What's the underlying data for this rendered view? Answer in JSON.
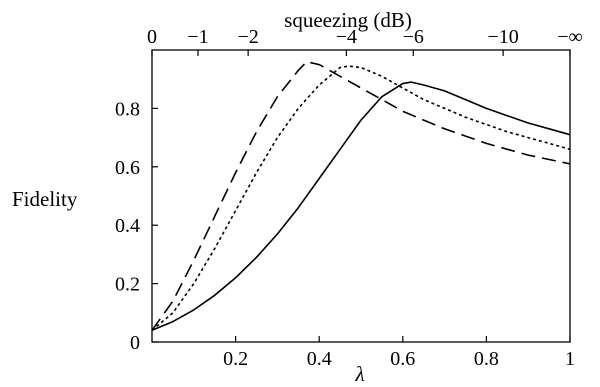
{
  "chart_data": {
    "type": "line",
    "title": "",
    "xlabel": "λ",
    "ylabel": "Fidelity",
    "x2label": "squeezing (dB)",
    "xlim": [
      0,
      1
    ],
    "ylim": [
      0,
      1
    ],
    "grid": false,
    "legend": "none",
    "xticks": [
      {
        "value": 0.2,
        "label": "0.2"
      },
      {
        "value": 0.4,
        "label": "0.4"
      },
      {
        "value": 0.6,
        "label": "0.6"
      },
      {
        "value": 0.8,
        "label": "0.8"
      },
      {
        "value": 1.0,
        "label": "1"
      }
    ],
    "yticks": [
      {
        "value": 0,
        "label": "0"
      },
      {
        "value": 0.2,
        "label": "0.2"
      },
      {
        "value": 0.4,
        "label": "0.4"
      },
      {
        "value": 0.6,
        "label": "0.6"
      },
      {
        "value": 0.8,
        "label": "0.8"
      }
    ],
    "x2ticks": [
      {
        "value": 0.0,
        "label": "0"
      },
      {
        "value": 0.11,
        "label": "−1"
      },
      {
        "value": 0.23,
        "label": "−2"
      },
      {
        "value": 0.465,
        "label": "−4"
      },
      {
        "value": 0.625,
        "label": "−6"
      },
      {
        "value": 0.84,
        "label": "−10"
      },
      {
        "value": 1.0,
        "label": "−∞"
      }
    ],
    "series": [
      {
        "style": "solid",
        "x": [
          0,
          0.05,
          0.1,
          0.15,
          0.2,
          0.25,
          0.3,
          0.35,
          0.4,
          0.45,
          0.5,
          0.55,
          0.6,
          0.62,
          0.65,
          0.7,
          0.75,
          0.8,
          0.85,
          0.9,
          0.95,
          1.0
        ],
        "y": [
          0.04,
          0.07,
          0.11,
          0.16,
          0.22,
          0.29,
          0.37,
          0.46,
          0.56,
          0.66,
          0.76,
          0.84,
          0.885,
          0.89,
          0.88,
          0.86,
          0.83,
          0.8,
          0.775,
          0.75,
          0.73,
          0.71
        ]
      },
      {
        "style": "dotted",
        "x": [
          0,
          0.05,
          0.1,
          0.15,
          0.2,
          0.25,
          0.3,
          0.35,
          0.4,
          0.45,
          0.47,
          0.5,
          0.55,
          0.6,
          0.65,
          0.7,
          0.75,
          0.8,
          0.85,
          0.9,
          0.95,
          1.0
        ],
        "y": [
          0.04,
          0.1,
          0.2,
          0.32,
          0.45,
          0.58,
          0.7,
          0.8,
          0.88,
          0.94,
          0.945,
          0.94,
          0.91,
          0.87,
          0.83,
          0.8,
          0.77,
          0.745,
          0.72,
          0.7,
          0.68,
          0.66
        ]
      },
      {
        "style": "dashed",
        "x": [
          0,
          0.05,
          0.1,
          0.15,
          0.2,
          0.25,
          0.3,
          0.35,
          0.37,
          0.4,
          0.45,
          0.5,
          0.55,
          0.6,
          0.65,
          0.7,
          0.75,
          0.8,
          0.85,
          0.9,
          0.95,
          1.0
        ],
        "y": [
          0.04,
          0.14,
          0.28,
          0.43,
          0.58,
          0.72,
          0.84,
          0.93,
          0.96,
          0.95,
          0.91,
          0.87,
          0.83,
          0.79,
          0.76,
          0.73,
          0.705,
          0.68,
          0.66,
          0.64,
          0.625,
          0.61
        ]
      }
    ]
  }
}
